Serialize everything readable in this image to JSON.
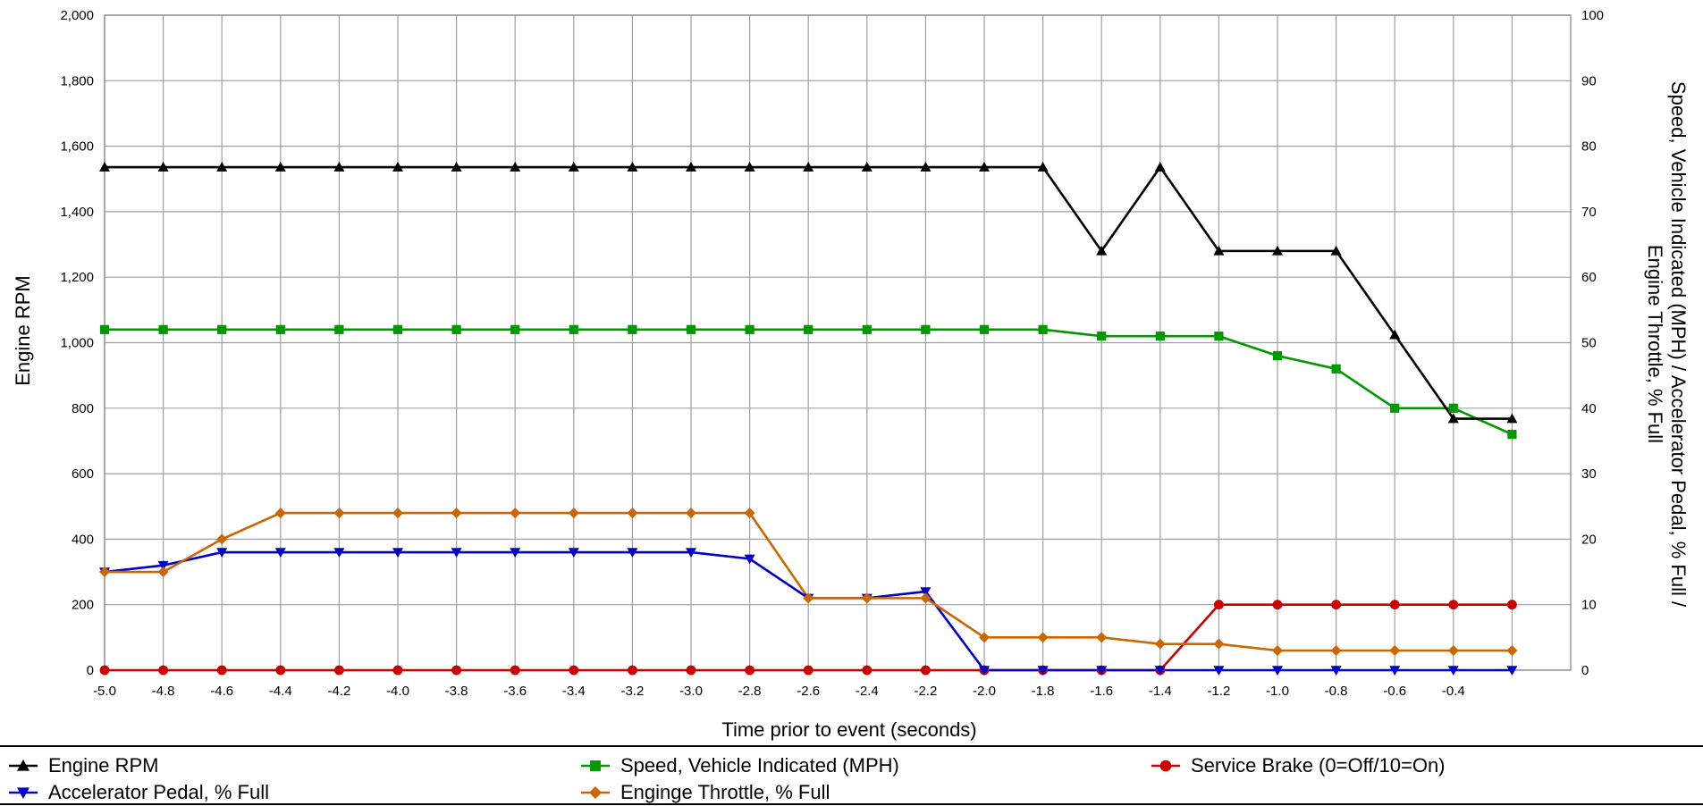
{
  "chart_data": {
    "type": "line",
    "xlabel": "Time prior to event (seconds)",
    "ylabel_left": "Engine RPM",
    "ylabel_right_line1": "Speed, Vehicle Indicated (MPH) / Accelerator Pedal, % Full /",
    "ylabel_right_line2": "Engine Throttle, % Full",
    "xlim": [
      -5.0,
      0.0
    ],
    "ylim_left": [
      0,
      2000
    ],
    "ylim_right": [
      0,
      100
    ],
    "grid": true,
    "legend_position": "bottom",
    "x_ticks": [
      "-5.0",
      "-4.8",
      "-4.6",
      "-4.4",
      "-4.2",
      "-4.0",
      "-3.8",
      "-3.6",
      "-3.4",
      "-3.2",
      "-3.0",
      "-2.8",
      "-2.6",
      "-2.4",
      "-2.2",
      "-2.0",
      "-1.8",
      "-1.6",
      "-1.4",
      "-1.2",
      "-1.0",
      "-0.8",
      "-0.6",
      "-0.4"
    ],
    "y_ticks_left": [
      "0",
      "200",
      "400",
      "600",
      "800",
      "1,000",
      "1,200",
      "1,400",
      "1,600",
      "1,800",
      "2,000"
    ],
    "y_ticks_right": [
      "0",
      "10",
      "20",
      "30",
      "40",
      "50",
      "60",
      "70",
      "80",
      "90",
      "100"
    ],
    "x": [
      -5.0,
      -4.8,
      -4.6,
      -4.4,
      -4.2,
      -4.0,
      -3.8,
      -3.6,
      -3.4,
      -3.2,
      -3.0,
      -2.8,
      -2.6,
      -2.4,
      -2.2,
      -2.0,
      -1.8,
      -1.6,
      -1.4,
      -1.2,
      -1.0,
      -0.8,
      -0.6,
      -0.4,
      -0.2
    ],
    "series": [
      {
        "name": "Engine RPM",
        "axis": "left",
        "marker": "triangle-up",
        "color": "#000000",
        "values": [
          1536,
          1536,
          1536,
          1536,
          1536,
          1536,
          1536,
          1536,
          1536,
          1536,
          1536,
          1536,
          1536,
          1536,
          1536,
          1536,
          1536,
          1280,
          1536,
          1280,
          1280,
          1280,
          1024,
          768,
          768
        ]
      },
      {
        "name": "Speed, Vehicle Indicated (MPH)",
        "axis": "right",
        "marker": "square",
        "color": "#009900",
        "values": [
          52,
          52,
          52,
          52,
          52,
          52,
          52,
          52,
          52,
          52,
          52,
          52,
          52,
          52,
          52,
          52,
          52,
          51,
          51,
          51,
          48,
          46,
          40,
          40,
          36
        ]
      },
      {
        "name": "Service Brake (0=Off/10=On)",
        "axis": "right",
        "marker": "circle",
        "color": "#cc0000",
        "values": [
          0,
          0,
          0,
          0,
          0,
          0,
          0,
          0,
          0,
          0,
          0,
          0,
          0,
          0,
          0,
          0,
          0,
          0,
          0,
          10,
          10,
          10,
          10,
          10,
          10
        ]
      },
      {
        "name": "Accelerator Pedal, % Full",
        "axis": "right",
        "marker": "triangle-down",
        "color": "#0000cc",
        "values": [
          15,
          16,
          18,
          18,
          18,
          18,
          18,
          18,
          18,
          18,
          18,
          17,
          11,
          11,
          12,
          0,
          0,
          0,
          0,
          0,
          0,
          0,
          0,
          0,
          0
        ]
      },
      {
        "name": "Enginge Throttle, % Full",
        "axis": "right",
        "marker": "diamond",
        "color": "#cc6600",
        "values": [
          15,
          15,
          20,
          24,
          24,
          24,
          24,
          24,
          24,
          24,
          24,
          24,
          11,
          11,
          11,
          5,
          5,
          5,
          4,
          4,
          3,
          3,
          3,
          3,
          3
        ]
      }
    ]
  }
}
